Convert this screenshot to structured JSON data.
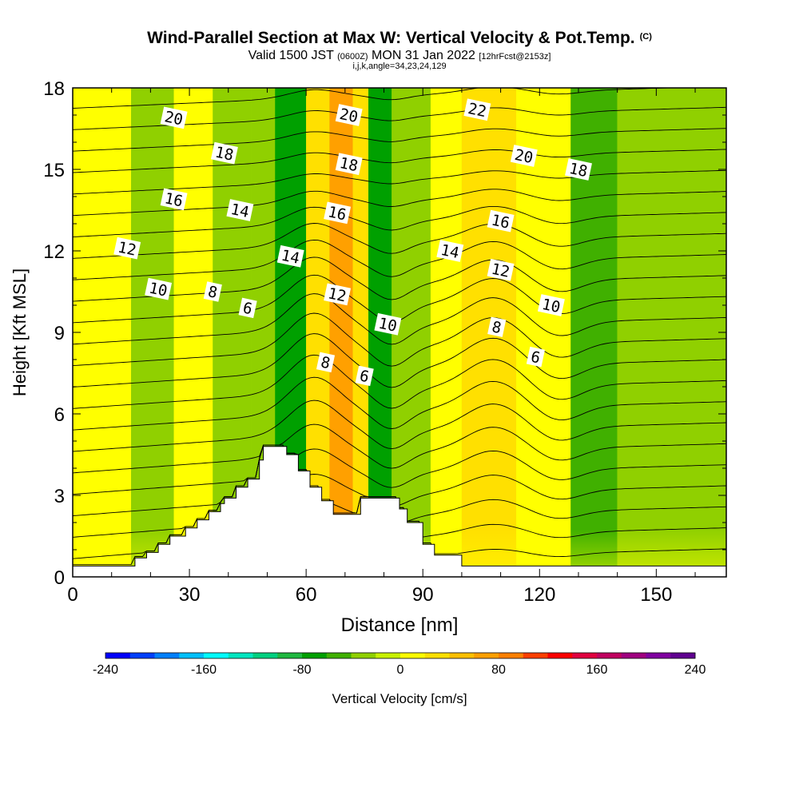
{
  "header": {
    "title": "Wind-Parallel Section at Max W: Vertical Velocity & Pot.Temp.",
    "copyright_mark": "(C)",
    "valid_prefix": "Valid 1500 JST",
    "utc": "(0600Z)",
    "valid_date": "MON 31 Jan 2022",
    "forecast": "[12hrFcst@2153z]",
    "indices": "i,j,k,angle=34,23,24,129"
  },
  "chart_data": {
    "type": "heatmap",
    "xlabel": "Distance [nm]",
    "ylabel": "Height [Kft MSL]",
    "xlim": [
      0,
      168
    ],
    "ylim": [
      0,
      18
    ],
    "x_ticks": [
      0,
      30,
      60,
      90,
      120,
      150
    ],
    "y_ticks": [
      0,
      3,
      6,
      9,
      12,
      15,
      18
    ],
    "grid": false,
    "colorbar": {
      "label": "Vertical Velocity [cm/s]",
      "ticks": [
        -240,
        -160,
        -80,
        0,
        80,
        160,
        240
      ],
      "colors": [
        "#0000ff",
        "#0040ff",
        "#0080ff",
        "#00c0ff",
        "#00ffff",
        "#00e6c0",
        "#00d080",
        "#20b840",
        "#00a000",
        "#40b000",
        "#90d000",
        "#c8f000",
        "#ffff00",
        "#ffe000",
        "#ffc000",
        "#ffa000",
        "#ff8000",
        "#ff4000",
        "#ff0000",
        "#e00040",
        "#c00060",
        "#a00080",
        "#8000a0",
        "#600090"
      ]
    },
    "velocity_bands": [
      {
        "x": [
          0,
          15
        ],
        "value": 10
      },
      {
        "x": [
          15,
          26
        ],
        "value": -30
      },
      {
        "x": [
          26,
          36
        ],
        "value": 10
      },
      {
        "x": [
          36,
          46
        ],
        "value": -30
      },
      {
        "x": [
          46,
          52
        ],
        "value": -30
      },
      {
        "x": [
          52,
          60
        ],
        "value": -80
      },
      {
        "x": [
          60,
          66
        ],
        "value": 30
      },
      {
        "x": [
          66,
          72
        ],
        "value": 60
      },
      {
        "x": [
          72,
          76
        ],
        "value": 20
      },
      {
        "x": [
          76,
          82
        ],
        "value": -80
      },
      {
        "x": [
          82,
          92
        ],
        "value": -30
      },
      {
        "x": [
          92,
          100
        ],
        "value": 10
      },
      {
        "x": [
          100,
          114
        ],
        "value": 30
      },
      {
        "x": [
          114,
          128
        ],
        "value": 10
      },
      {
        "x": [
          128,
          140
        ],
        "value": -50
      },
      {
        "x": [
          140,
          168
        ],
        "value": -25
      }
    ],
    "terrain": [
      {
        "x": 0,
        "y": 0.4
      },
      {
        "x": 16,
        "y": 0.4
      },
      {
        "x": 16,
        "y": 0.7
      },
      {
        "x": 19,
        "y": 0.7
      },
      {
        "x": 19,
        "y": 0.9
      },
      {
        "x": 22,
        "y": 0.9
      },
      {
        "x": 22,
        "y": 1.2
      },
      {
        "x": 25,
        "y": 1.2
      },
      {
        "x": 25,
        "y": 1.5
      },
      {
        "x": 29,
        "y": 1.5
      },
      {
        "x": 29,
        "y": 1.8
      },
      {
        "x": 32,
        "y": 1.8
      },
      {
        "x": 32,
        "y": 2.1
      },
      {
        "x": 35,
        "y": 2.1
      },
      {
        "x": 35,
        "y": 2.4
      },
      {
        "x": 38,
        "y": 2.4
      },
      {
        "x": 38,
        "y": 2.7
      },
      {
        "x": 39,
        "y": 2.7
      },
      {
        "x": 39,
        "y": 2.9
      },
      {
        "x": 42,
        "y": 2.9
      },
      {
        "x": 42,
        "y": 3.3
      },
      {
        "x": 45,
        "y": 3.3
      },
      {
        "x": 45,
        "y": 3.6
      },
      {
        "x": 48,
        "y": 3.6
      },
      {
        "x": 48,
        "y": 4.3
      },
      {
        "x": 49,
        "y": 4.3
      },
      {
        "x": 49,
        "y": 4.8
      },
      {
        "x": 55,
        "y": 4.8
      },
      {
        "x": 55,
        "y": 4.5
      },
      {
        "x": 58,
        "y": 4.5
      },
      {
        "x": 58,
        "y": 3.9
      },
      {
        "x": 61,
        "y": 3.9
      },
      {
        "x": 61,
        "y": 3.3
      },
      {
        "x": 64,
        "y": 3.3
      },
      {
        "x": 64,
        "y": 2.8
      },
      {
        "x": 67,
        "y": 2.8
      },
      {
        "x": 67,
        "y": 2.3
      },
      {
        "x": 74,
        "y": 2.3
      },
      {
        "x": 74,
        "y": 2.9
      },
      {
        "x": 84,
        "y": 2.9
      },
      {
        "x": 84,
        "y": 2.5
      },
      {
        "x": 86,
        "y": 2.5
      },
      {
        "x": 86,
        "y": 2.0
      },
      {
        "x": 90,
        "y": 2.0
      },
      {
        "x": 90,
        "y": 1.2
      },
      {
        "x": 93,
        "y": 1.2
      },
      {
        "x": 93,
        "y": 0.8
      },
      {
        "x": 100,
        "y": 0.8
      },
      {
        "x": 100,
        "y": 0.4
      },
      {
        "x": 168,
        "y": 0.4
      }
    ],
    "isentropes": {
      "interval": 1,
      "min": 1,
      "max": 24,
      "labels": [
        {
          "value": "20",
          "x": 26,
          "y": 16.9
        },
        {
          "value": "18",
          "x": 39,
          "y": 15.6
        },
        {
          "value": "16",
          "x": 26,
          "y": 13.9
        },
        {
          "value": "14",
          "x": 43,
          "y": 13.5
        },
        {
          "value": "12",
          "x": 14,
          "y": 12.1
        },
        {
          "value": "10",
          "x": 22,
          "y": 10.6
        },
        {
          "value": "8",
          "x": 36,
          "y": 10.5
        },
        {
          "value": "6",
          "x": 45,
          "y": 9.9
        },
        {
          "value": "14",
          "x": 56,
          "y": 11.8
        },
        {
          "value": "20",
          "x": 71,
          "y": 17.0
        },
        {
          "value": "18",
          "x": 71,
          "y": 15.2
        },
        {
          "value": "16",
          "x": 68,
          "y": 13.4
        },
        {
          "value": "12",
          "x": 68,
          "y": 10.4
        },
        {
          "value": "10",
          "x": 81,
          "y": 9.3
        },
        {
          "value": "8",
          "x": 65,
          "y": 7.9
        },
        {
          "value": "6",
          "x": 75,
          "y": 7.4
        },
        {
          "value": "22",
          "x": 104,
          "y": 17.2
        },
        {
          "value": "20",
          "x": 116,
          "y": 15.5
        },
        {
          "value": "18",
          "x": 130,
          "y": 15.0
        },
        {
          "value": "16",
          "x": 110,
          "y": 13.1
        },
        {
          "value": "14",
          "x": 97,
          "y": 12.0
        },
        {
          "value": "12",
          "x": 110,
          "y": 11.3
        },
        {
          "value": "10",
          "x": 123,
          "y": 10.0
        },
        {
          "value": "8",
          "x": 109,
          "y": 9.2
        },
        {
          "value": "6",
          "x": 119,
          "y": 8.1
        }
      ]
    }
  }
}
